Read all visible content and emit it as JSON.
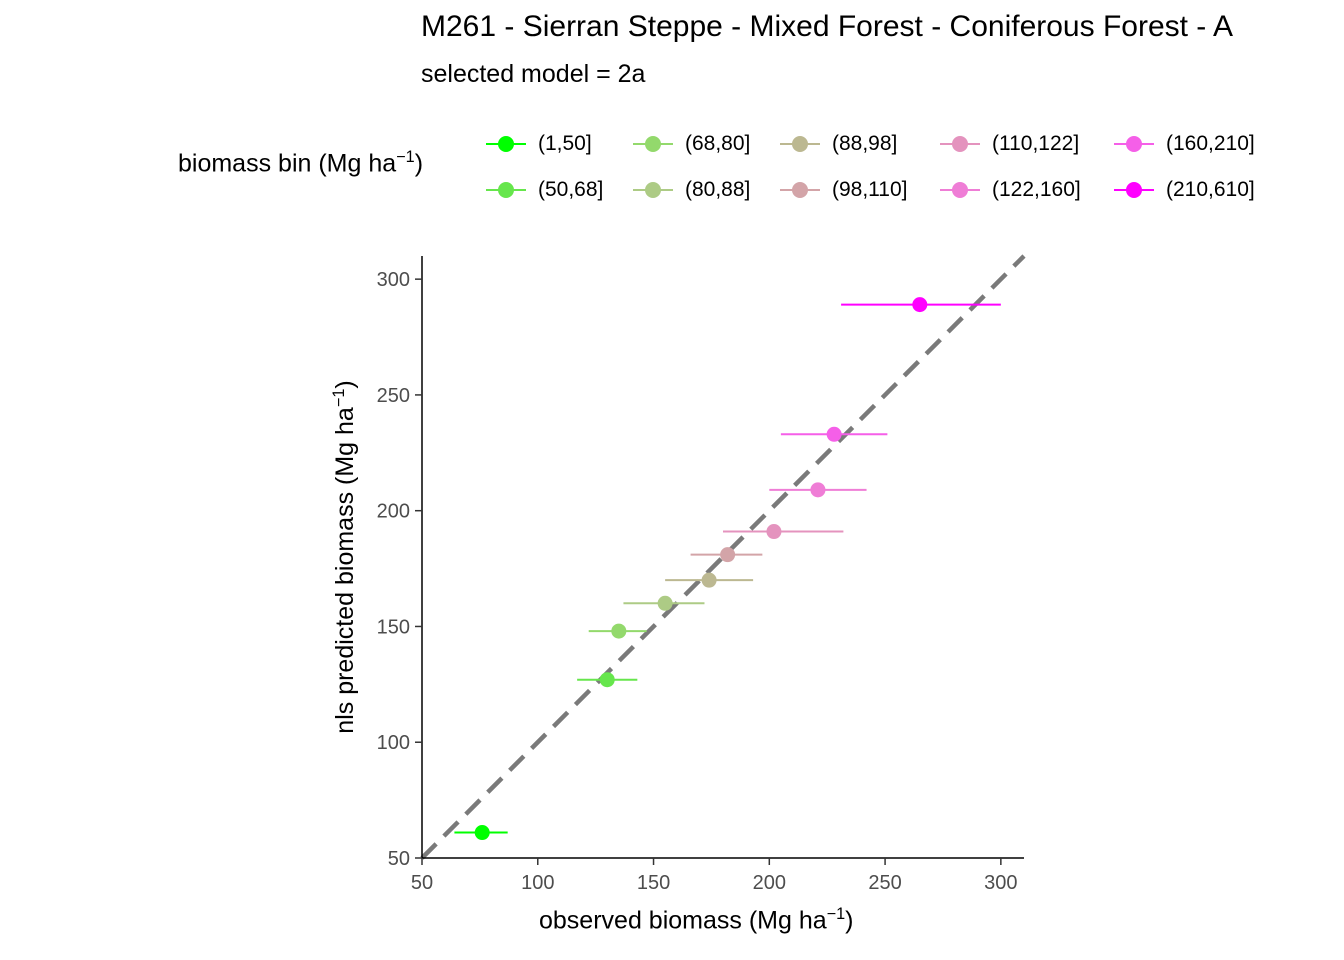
{
  "chart_data": {
    "type": "scatter",
    "title": "M261 - Sierran Steppe - Mixed Forest - Coniferous Forest - A",
    "subtitle": "selected model = 2a",
    "xlabel": "observed biomass (Mg ha",
    "xlabel_sup": "−1",
    "xlabel_close": ")",
    "ylabel": "nls predicted biomass (Mg ha",
    "ylabel_sup": "−1",
    "ylabel_close": ")",
    "xlim": [
      50,
      310
    ],
    "ylim": [
      50,
      310
    ],
    "x_ticks": [
      50,
      100,
      150,
      200,
      250,
      300
    ],
    "y_ticks": [
      50,
      100,
      150,
      200,
      250,
      300
    ],
    "reference_line": "y = x (dashed grey)",
    "legend": {
      "title": "biomass bin (Mg ha",
      "title_sup": "−1",
      "title_close": ")",
      "placement": "top"
    },
    "series": [
      {
        "name": "(1,50]",
        "color": "#00ff00",
        "x": 76,
        "y": 61,
        "xmin": 64,
        "xmax": 87
      },
      {
        "name": "(50,68]",
        "color": "#66e64c",
        "x": 130,
        "y": 127,
        "xmin": 117,
        "xmax": 143
      },
      {
        "name": "(68,80]",
        "color": "#93d96c",
        "x": 135,
        "y": 148,
        "xmin": 122,
        "xmax": 147
      },
      {
        "name": "(80,88]",
        "color": "#adcb85",
        "x": 155,
        "y": 160,
        "xmin": 137,
        "xmax": 172
      },
      {
        "name": "(88,98]",
        "color": "#bcb891",
        "x": 174,
        "y": 170,
        "xmin": 155,
        "xmax": 193
      },
      {
        "name": "(98,110]",
        "color": "#d3a4a8",
        "x": 182,
        "y": 181,
        "xmin": 166,
        "xmax": 197
      },
      {
        "name": "(110,122]",
        "color": "#e493be",
        "x": 202,
        "y": 191,
        "xmin": 180,
        "xmax": 232
      },
      {
        "name": "(122,160]",
        "color": "#ef7dd6",
        "x": 221,
        "y": 209,
        "xmin": 200,
        "xmax": 242
      },
      {
        "name": "(160,210]",
        "color": "#f55fe8",
        "x": 228,
        "y": 233,
        "xmin": 205,
        "xmax": 251
      },
      {
        "name": "(210,610]",
        "color": "#ff00ff",
        "x": 265,
        "y": 289,
        "xmin": 231,
        "xmax": 300
      }
    ]
  }
}
